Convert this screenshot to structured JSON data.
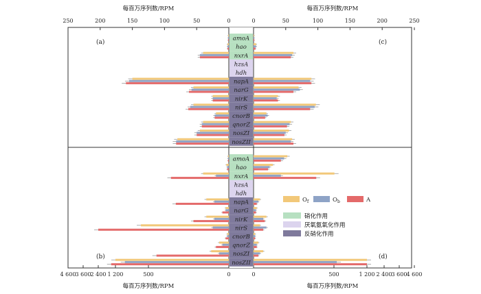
{
  "colors": {
    "Of": "#f2c879",
    "Ob": "#8ea3c6",
    "A": "#e46a6a",
    "nitrification": "#b7e0c1",
    "anammox": "#dcd4ee",
    "denitrification": "#7f7a9c"
  },
  "axes": {
    "top_left_title": "每百万序列数/RPM",
    "top_right_title": "每百万序列数/RPM",
    "bottom_left_title": "每百万序列数/RPM",
    "bottom_right_title": "每百万序列数/RPM",
    "top_left_ticks": [
      "250",
      "200",
      "150",
      "100",
      "50",
      "0"
    ],
    "top_right_ticks": [
      "0",
      "50",
      "100",
      "150",
      "200",
      "250"
    ],
    "bottom_left_ticks": [
      "4 600",
      "3 600",
      "2 400",
      "1 200",
      "500",
      "0"
    ],
    "bottom_right_ticks": [
      "0",
      "500",
      "1 200",
      "2 400",
      "3 600",
      "4 600"
    ]
  },
  "panels": {
    "a": "(a)",
    "b": "(b)",
    "c": "(c)",
    "d": "(d)"
  },
  "legend": {
    "series": [
      "Of",
      "Ob",
      "A"
    ],
    "series_labels": {
      "Of": "O",
      "Of_sub": "f",
      "Ob": "O",
      "Ob_sub": "b",
      "A": "A"
    },
    "groups": [
      "硝化作用",
      "厌氧氨氧化作用",
      "反硝化作用"
    ]
  },
  "chart_data": {
    "type": "bar",
    "series": [
      "Of",
      "Ob",
      "A"
    ],
    "genes": [
      "amoA",
      "hao",
      "nxrA",
      "hzsA",
      "hdh",
      "napA",
      "narG",
      "nirK",
      "nirS",
      "cnorB",
      "qnorZ",
      "nosZI",
      "nosZII"
    ],
    "gene_groups": [
      "nitrification",
      "nitrification",
      "nitrification",
      "anammox",
      "anammox",
      "denitrification",
      "denitrification",
      "denitrification",
      "denitrification",
      "denitrification",
      "denitrification",
      "denitrification",
      "denitrification"
    ],
    "panel_a": {
      "xlim": [
        250,
        0
      ],
      "values": {
        "Of": [
          1,
          2,
          40,
          0,
          0,
          150,
          55,
          25,
          55,
          20,
          40,
          45,
          80
        ],
        "Ob": [
          1,
          2,
          45,
          0,
          0,
          155,
          58,
          25,
          60,
          22,
          42,
          50,
          82
        ],
        "A": [
          1,
          2,
          45,
          0,
          0,
          160,
          62,
          25,
          63,
          22,
          42,
          50,
          82
        ]
      }
    },
    "panel_c": {
      "xlim": [
        0,
        250
      ],
      "values": {
        "Of": [
          1,
          4,
          62,
          0,
          0,
          90,
          70,
          38,
          97,
          20,
          58,
          55,
          60
        ],
        "Ob": [
          1,
          4,
          60,
          0,
          0,
          88,
          72,
          36,
          95,
          22,
          56,
          50,
          58
        ],
        "A": [
          1,
          3,
          58,
          0,
          0,
          90,
          62,
          38,
          88,
          18,
          52,
          48,
          62
        ]
      }
    },
    "panel_b": {
      "xlim": [
        4600,
        0
      ],
      "values": {
        "Of": [
          5,
          15,
          160,
          0,
          0,
          140,
          20,
          140,
          660,
          10,
          60,
          110,
          1200
        ],
        "Ob": [
          5,
          10,
          80,
          0,
          0,
          90,
          20,
          90,
          100,
          10,
          40,
          60,
          1000
        ],
        "A": [
          5,
          10,
          360,
          0,
          0,
          330,
          40,
          220,
          2400,
          20,
          80,
          450,
          1500
        ]
      }
    },
    "panel_d": {
      "xlim": [
        0,
        4600
      ],
      "values": {
        "Of": [
          210,
          120,
          510,
          0,
          0,
          40,
          20,
          80,
          40,
          10,
          30,
          60,
          1200
        ],
        "Ob": [
          190,
          100,
          170,
          0,
          0,
          30,
          15,
          60,
          80,
          10,
          20,
          40,
          560
        ],
        "A": [
          170,
          90,
          390,
          0,
          0,
          20,
          15,
          70,
          60,
          10,
          20,
          30,
          1200
        ]
      }
    }
  }
}
